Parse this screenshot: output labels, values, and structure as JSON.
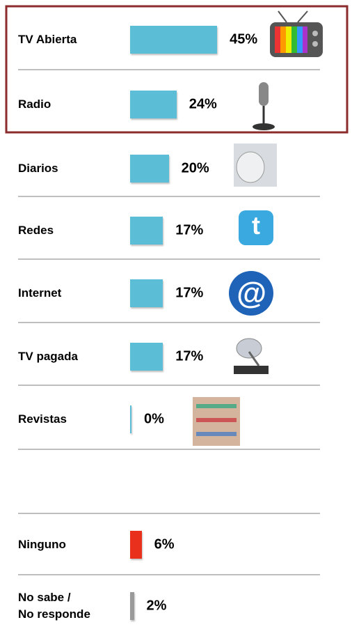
{
  "chart_data": {
    "type": "bar",
    "categories": [
      "TV Abierta",
      "Radio",
      "Diarios",
      "Redes",
      "Internet",
      "TV pagada",
      "Revistas",
      "Ninguno",
      "No sabe /\nNo responde"
    ],
    "values": [
      45,
      24,
      20,
      17,
      17,
      17,
      0,
      6,
      2
    ],
    "value_labels": [
      "45%",
      "24%",
      "20%",
      "17%",
      "17%",
      "17%",
      "0%",
      "6%",
      "2%"
    ],
    "colors": [
      "#5bbdd6",
      "#5bbdd6",
      "#5bbdd6",
      "#5bbdd6",
      "#5bbdd6",
      "#5bbdd6",
      "#5bbdd6",
      "#e8301c",
      "#9a9a9a"
    ]
  }
}
